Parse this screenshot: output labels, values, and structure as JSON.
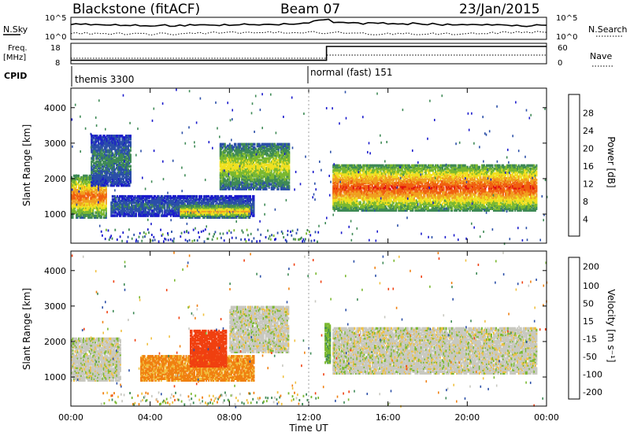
{
  "header": {
    "station": "Blackstone (fitACF)",
    "beam": "Beam 07",
    "date": "23/Jan/2015"
  },
  "panels": {
    "noise": {
      "left_label": "N.Sky",
      "right_label": "N.Search",
      "left_ticks": [
        "10^5",
        "10^0"
      ],
      "right_ticks": [
        "10^5",
        "10^0"
      ]
    },
    "freq": {
      "left_label_top": "Freq.",
      "left_label_bottom": "[MHz]",
      "right_label": "Nave",
      "left_ticks": [
        "18",
        "8"
      ],
      "right_ticks": [
        "60",
        "0"
      ]
    },
    "cpid": {
      "label": "CPID",
      "segments": [
        {
          "name": "themis 3300",
          "start_hour": 0
        },
        {
          "name": "normal (fast) 151",
          "start_hour": 12
        }
      ]
    }
  },
  "time_axis": {
    "label": "Time UT",
    "ticks": [
      "00:00",
      "04:00",
      "08:00",
      "12:00",
      "16:00",
      "20:00",
      "00:00"
    ]
  },
  "power_panel": {
    "ylabel": "Slant Range [km]",
    "yticks": [
      "4000",
      "3000",
      "2000",
      "1000"
    ],
    "cbar_label": "Power [dB]",
    "cbar_ticks": [
      "28",
      "24",
      "20",
      "16",
      "12",
      "8",
      "4"
    ],
    "colors": [
      "#1a1acc",
      "#2b4fa8",
      "#3f8a56",
      "#7ab830",
      "#f0e020",
      "#f0a020",
      "#f06010",
      "#e01010"
    ]
  },
  "velocity_panel": {
    "ylabel": "Slant Range [km]",
    "yticks": [
      "4000",
      "3000",
      "2000",
      "1000"
    ],
    "cbar_label": "Velocity [m s⁻¹]",
    "cbar_ticks": [
      "200",
      "100",
      "50",
      "15",
      "-15",
      "-50",
      "-100",
      "-200"
    ],
    "colors": [
      "#1a1acc",
      "#2b4fa8",
      "#3f8a56",
      "#7ab830",
      "#c8c8c0",
      "#f0c040",
      "#f08010",
      "#f04010",
      "#e01010"
    ]
  },
  "chart_data": {
    "type": "heatmap",
    "title": "Blackstone (fitACF) Beam 07 23/Jan/2015",
    "xlabel": "Time UT",
    "ylabel": "Slant Range [km]",
    "xlim_hours": [
      0,
      24
    ],
    "ylim_km": [
      180,
      4550
    ],
    "freq_mhz": [
      {
        "start_hour": 0,
        "end_hour": 12.9,
        "value": 10
      },
      {
        "start_hour": 12.9,
        "end_hour": 24,
        "value": 18
      }
    ],
    "power_bands": [
      {
        "t0": 0.0,
        "t1": 1.8,
        "r0": 900,
        "r1": 2100,
        "level": 26
      },
      {
        "t0": 1.0,
        "t1": 3.0,
        "r0": 1800,
        "r1": 3200,
        "level": 10
      },
      {
        "t0": 2.0,
        "t1": 9.2,
        "r0": 950,
        "r1": 1500,
        "level": 8
      },
      {
        "t0": 5.5,
        "t1": 9.0,
        "r0": 900,
        "r1": 1250,
        "level": 22
      },
      {
        "t0": 7.5,
        "t1": 11.0,
        "r0": 1700,
        "r1": 3000,
        "level": 18
      },
      {
        "t0": 13.2,
        "t1": 23.5,
        "r0": 1100,
        "r1": 2400,
        "level": 28
      }
    ],
    "velocity_bands": [
      {
        "t0": 0.0,
        "t1": 2.5,
        "r0": 900,
        "r1": 2100,
        "velocity": 0
      },
      {
        "t0": 3.5,
        "t1": 9.2,
        "r0": 900,
        "r1": 1600,
        "velocity": -60
      },
      {
        "t0": 6.0,
        "t1": 7.8,
        "r0": 1300,
        "r1": 2300,
        "velocity": -120
      },
      {
        "t0": 8.0,
        "t1": 11.0,
        "r0": 1700,
        "r1": 3000,
        "velocity": 0
      },
      {
        "t0": 12.8,
        "t1": 13.1,
        "r0": 1400,
        "r1": 2500,
        "velocity": 40
      },
      {
        "t0": 13.2,
        "t1": 23.5,
        "r0": 1100,
        "r1": 2400,
        "velocity": 0
      }
    ]
  }
}
